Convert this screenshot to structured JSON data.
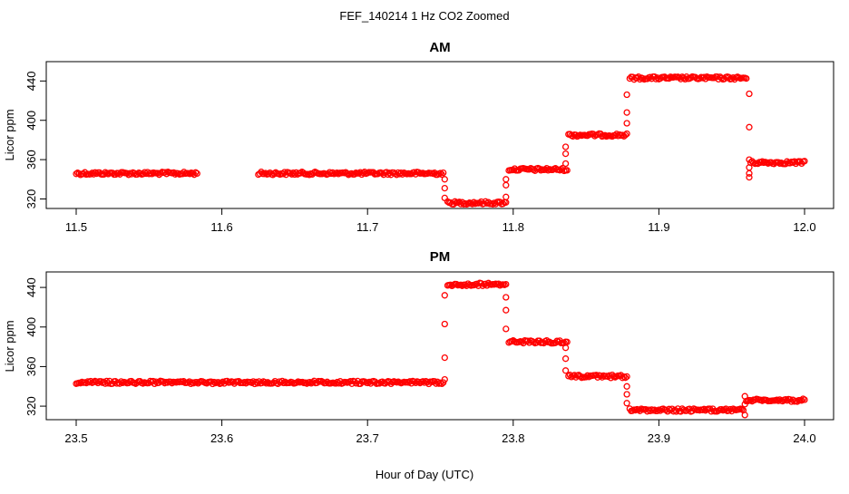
{
  "page": {
    "title": "FEF_140214  1 Hz CO2 Zoomed",
    "xlabel": "Hour of Day (UTC)"
  },
  "chart_data": [
    {
      "type": "scatter",
      "title": "AM",
      "ylabel": "Licor ppm",
      "xlabel": "Hour of Day (UTC)",
      "xlim": [
        11.5,
        12.0
      ],
      "ylim": [
        314,
        456
      ],
      "xticks": [
        11.5,
        11.6,
        11.7,
        11.8,
        11.9,
        12.0
      ],
      "xtick_labels": [
        "11.5",
        "11.6",
        "11.7",
        "11.8",
        "11.9",
        "12.0"
      ],
      "yticks": [
        320,
        360,
        400,
        440
      ],
      "ytick_labels": [
        "320",
        "360",
        "400",
        "440"
      ],
      "marker": "open-circle",
      "color": "#ff0000",
      "grid": false,
      "series": [
        {
          "segments": [
            {
              "x": [
                11.5,
                11.583
              ],
              "y": [
                346,
                346
              ]
            },
            {
              "x": [
                11.625,
                11.752
              ],
              "y": [
                346,
                346
              ]
            },
            {
              "x": [
                11.755,
                11.795
              ],
              "y": [
                316,
                316
              ]
            },
            {
              "x": [
                11.797,
                11.837
              ],
              "y": [
                350,
                350
              ]
            },
            {
              "x": [
                11.838,
                11.878
              ],
              "y": [
                385,
                385
              ]
            },
            {
              "x": [
                11.88,
                11.96
              ],
              "y": [
                443,
                443
              ]
            },
            {
              "x": [
                11.963,
                12.0
              ],
              "y": [
                357,
                357
              ]
            }
          ],
          "transitions": [
            {
              "x": 11.753,
              "y": [
                340,
                331,
                321
              ]
            },
            {
              "x": 11.795,
              "y": [
                322,
                334,
                340
              ]
            },
            {
              "x": 11.836,
              "y": [
                356,
                366,
                373
              ]
            },
            {
              "x": 11.878,
              "y": [
                397,
                408,
                426
              ]
            },
            {
              "x": 11.962,
              "y": [
                427,
                393,
                360,
                352,
                346,
                342
              ]
            }
          ]
        }
      ]
    },
    {
      "type": "scatter",
      "title": "PM",
      "ylabel": "Licor ppm",
      "xlabel": "Hour of Day (UTC)",
      "xlim": [
        23.5,
        24.0
      ],
      "ylim": [
        310,
        452
      ],
      "xticks": [
        23.5,
        23.6,
        23.7,
        23.8,
        23.9,
        24.0
      ],
      "xtick_labels": [
        "23.5",
        "23.6",
        "23.7",
        "23.8",
        "23.9",
        "24.0"
      ],
      "yticks": [
        320,
        360,
        400,
        440
      ],
      "ytick_labels": [
        "320",
        "360",
        "400",
        "440"
      ],
      "marker": "open-circle",
      "color": "#ff0000",
      "grid": false,
      "series": [
        {
          "segments": [
            {
              "x": [
                23.5,
                23.752
              ],
              "y": [
                344,
                344
              ]
            },
            {
              "x": [
                23.755,
                23.795
              ],
              "y": [
                443,
                443
              ]
            },
            {
              "x": [
                23.797,
                23.837
              ],
              "y": [
                385,
                385
              ]
            },
            {
              "x": [
                23.838,
                23.878
              ],
              "y": [
                350,
                350
              ]
            },
            {
              "x": [
                23.88,
                23.958
              ],
              "y": [
                316,
                316
              ]
            },
            {
              "x": [
                23.96,
                24.0
              ],
              "y": [
                326,
                326
              ]
            }
          ],
          "transitions": [
            {
              "x": 23.753,
              "y": [
                347,
                369,
                403,
                432
              ]
            },
            {
              "x": 23.795,
              "y": [
                430,
                417,
                398
              ]
            },
            {
              "x": 23.836,
              "y": [
                379,
                368,
                356
              ]
            },
            {
              "x": 23.878,
              "y": [
                340,
                332,
                323
              ]
            },
            {
              "x": 23.959,
              "y": [
                311,
                322,
                330
              ]
            }
          ]
        }
      ]
    }
  ]
}
